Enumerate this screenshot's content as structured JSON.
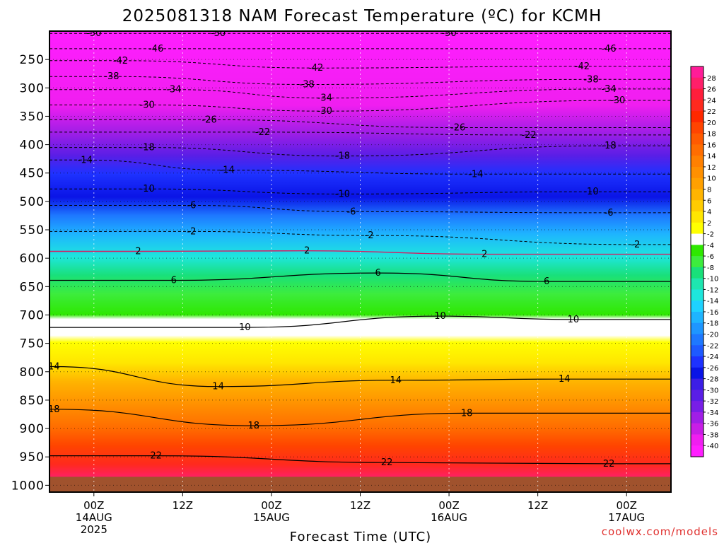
{
  "chart_data": {
    "type": "heatmap",
    "title": "2025081318 NAM Forecast Temperature (ºC) for KCMH",
    "xlabel": "Forecast Time (UTC)",
    "ylabel": "",
    "credit": "coolwx.com/models",
    "x_range_hours": [
      -5,
      65
    ],
    "x_ticks": [
      {
        "hour": 0,
        "line1": "00Z",
        "line2": "14AUG",
        "line3": "2025"
      },
      {
        "hour": 10,
        "line1": "12Z",
        "line2": "",
        "line3": ""
      },
      {
        "hour": 20,
        "line1": "00Z",
        "line2": "15AUG",
        "line3": ""
      },
      {
        "hour": 30,
        "line1": "12Z",
        "line2": "",
        "line3": ""
      },
      {
        "hour": 40,
        "line1": "00Z",
        "line2": "16AUG",
        "line3": ""
      },
      {
        "hour": 50,
        "line1": "12Z",
        "line2": "",
        "line3": ""
      },
      {
        "hour": 60,
        "line1": "00Z",
        "line2": "17AUG",
        "line3": ""
      }
    ],
    "y_ticks": [
      250,
      300,
      350,
      400,
      450,
      500,
      550,
      600,
      650,
      700,
      750,
      800,
      850,
      900,
      950,
      1000
    ],
    "y_range_hpa": [
      200,
      1012
    ],
    "ground_hpa": 985,
    "colorbar_labels": [
      28,
      26,
      24,
      22,
      20,
      18,
      16,
      14,
      12,
      10,
      8,
      6,
      4,
      2,
      -2,
      -4,
      -6,
      -8,
      -10,
      -12,
      -14,
      -16,
      -18,
      -20,
      -22,
      -24,
      -26,
      -28,
      -30,
      -32,
      -34,
      -36,
      -38,
      -40
    ],
    "colorbar_colors": [
      "#ff1c98",
      "#ff1f6a",
      "#ff1e3c",
      "#ff2a1e",
      "#ff2800",
      "#ff4400",
      "#ff5a00",
      "#ff6d00",
      "#ff8000",
      "#ff9000",
      "#ffa000",
      "#ffb400",
      "#ffcc00",
      "#ffe600",
      "#ffff00",
      "#ffffff",
      "#2ee800",
      "#3dec3d",
      "#19e07a",
      "#1ee6b0",
      "#1ee6dc",
      "#1ed2ff",
      "#1eb4ff",
      "#1e96ff",
      "#1e78ff",
      "#1e5aff",
      "#1e32ff",
      "#0a14e6",
      "#3c1ee6",
      "#5a1ee6",
      "#781ee6",
      "#a01ee6",
      "#c81ee6",
      "#ef1ef0",
      "#ff1eff"
    ],
    "isotherm_labels": [
      {
        "t": -50,
        "h": 0,
        "p": 204
      },
      {
        "t": -50,
        "h": 14,
        "p": 204
      },
      {
        "t": -50,
        "h": 40,
        "p": 204
      },
      {
        "t": -46,
        "h": 7,
        "p": 231
      },
      {
        "t": -46,
        "h": 58,
        "p": 231
      },
      {
        "t": -42,
        "h": 3,
        "p": 252
      },
      {
        "t": -42,
        "h": 25,
        "p": 265
      },
      {
        "t": -42,
        "h": 55,
        "p": 262
      },
      {
        "t": -38,
        "h": 2,
        "p": 280
      },
      {
        "t": -38,
        "h": 24,
        "p": 294
      },
      {
        "t": -38,
        "h": 56,
        "p": 285
      },
      {
        "t": -34,
        "h": 9,
        "p": 303
      },
      {
        "t": -34,
        "h": 26,
        "p": 318
      },
      {
        "t": -34,
        "h": 58,
        "p": 302
      },
      {
        "t": -30,
        "h": 6,
        "p": 330
      },
      {
        "t": -30,
        "h": 26,
        "p": 341
      },
      {
        "t": -30,
        "h": 59,
        "p": 322
      },
      {
        "t": -26,
        "h": 13,
        "p": 356
      },
      {
        "t": -26,
        "h": 41,
        "p": 370
      },
      {
        "t": -22,
        "h": 19,
        "p": 378
      },
      {
        "t": -22,
        "h": 49,
        "p": 383
      },
      {
        "t": -18,
        "h": 6,
        "p": 405
      },
      {
        "t": -18,
        "h": 28,
        "p": 420
      },
      {
        "t": -18,
        "h": 58,
        "p": 402
      },
      {
        "t": -14,
        "h": -1,
        "p": 427
      },
      {
        "t": -14,
        "h": 15,
        "p": 445
      },
      {
        "t": -14,
        "h": 43,
        "p": 452
      },
      {
        "t": -10,
        "h": 6,
        "p": 478
      },
      {
        "t": -10,
        "h": 28,
        "p": 487
      },
      {
        "t": -10,
        "h": 56,
        "p": 483
      },
      {
        "t": -6,
        "h": 11,
        "p": 507
      },
      {
        "t": -6,
        "h": 29,
        "p": 518
      },
      {
        "t": -6,
        "h": 58,
        "p": 520
      },
      {
        "t": -2,
        "h": 11,
        "p": 553
      },
      {
        "t": -2,
        "h": 31,
        "p": 560
      },
      {
        "t": -2,
        "h": 61,
        "p": 576
      },
      {
        "t": 2,
        "h": 5,
        "p": 588
      },
      {
        "t": 2,
        "h": 24,
        "p": 587
      },
      {
        "t": 2,
        "h": 44,
        "p": 593
      },
      {
        "t": 6,
        "h": 9,
        "p": 639
      },
      {
        "t": 6,
        "h": 32,
        "p": 626
      },
      {
        "t": 6,
        "h": 51,
        "p": 641
      },
      {
        "t": 10,
        "h": 17,
        "p": 722
      },
      {
        "t": 10,
        "h": 39,
        "p": 702
      },
      {
        "t": 10,
        "h": 54,
        "p": 708
      },
      {
        "t": 14,
        "h": -4.5,
        "p": 791
      },
      {
        "t": 14,
        "h": 14,
        "p": 826
      },
      {
        "t": 14,
        "h": 34,
        "p": 815
      },
      {
        "t": 14,
        "h": 53,
        "p": 813
      },
      {
        "t": 18,
        "h": -4.5,
        "p": 866
      },
      {
        "t": 18,
        "h": 18,
        "p": 895
      },
      {
        "t": 18,
        "h": 42,
        "p": 873
      },
      {
        "t": 22,
        "h": 7,
        "p": 948
      },
      {
        "t": 22,
        "h": 33,
        "p": 960
      },
      {
        "t": 22,
        "h": 58,
        "p": 962
      }
    ]
  }
}
